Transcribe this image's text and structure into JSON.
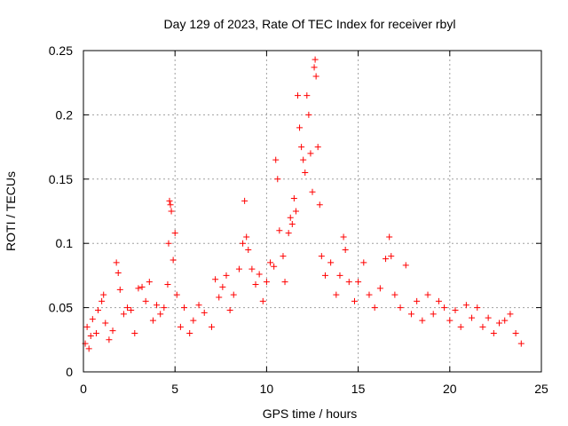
{
  "chart_data": {
    "type": "scatter",
    "title": "Day 129 of 2023, Rate Of TEC Index for receiver rbyl",
    "xlabel": "GPS time / hours",
    "ylabel": "ROTI / TECUs",
    "xlim": [
      0,
      25
    ],
    "ylim": [
      0,
      0.25
    ],
    "x_ticks": [
      "0",
      "5",
      "10",
      "15",
      "20",
      "25"
    ],
    "y_ticks": [
      "0",
      "0.05",
      "0.1",
      "0.15",
      "0.2",
      "0.25"
    ],
    "grid": true,
    "marker": "+",
    "color": "#ff0000",
    "series": [
      {
        "points": [
          [
            0.1,
            0.022
          ],
          [
            0.2,
            0.035
          ],
          [
            0.3,
            0.018
          ],
          [
            0.4,
            0.028
          ],
          [
            0.5,
            0.041
          ],
          [
            0.7,
            0.03
          ],
          [
            0.8,
            0.048
          ],
          [
            1.0,
            0.055
          ],
          [
            1.1,
            0.06
          ],
          [
            1.2,
            0.038
          ],
          [
            1.4,
            0.025
          ],
          [
            1.6,
            0.032
          ],
          [
            1.8,
            0.085
          ],
          [
            1.9,
            0.077
          ],
          [
            2.0,
            0.064
          ],
          [
            2.2,
            0.045
          ],
          [
            2.4,
            0.05
          ],
          [
            2.6,
            0.048
          ],
          [
            2.8,
            0.03
          ],
          [
            3.0,
            0.065
          ],
          [
            3.2,
            0.066
          ],
          [
            3.4,
            0.055
          ],
          [
            3.6,
            0.07
          ],
          [
            3.8,
            0.04
          ],
          [
            4.0,
            0.052
          ],
          [
            4.2,
            0.045
          ],
          [
            4.4,
            0.05
          ],
          [
            4.6,
            0.068
          ],
          [
            4.65,
            0.1
          ],
          [
            4.7,
            0.133
          ],
          [
            4.75,
            0.13
          ],
          [
            4.8,
            0.125
          ],
          [
            4.9,
            0.087
          ],
          [
            5.0,
            0.108
          ],
          [
            5.1,
            0.06
          ],
          [
            5.3,
            0.035
          ],
          [
            5.5,
            0.05
          ],
          [
            5.8,
            0.03
          ],
          [
            6.0,
            0.04
          ],
          [
            6.3,
            0.052
          ],
          [
            6.6,
            0.046
          ],
          [
            7.0,
            0.035
          ],
          [
            7.2,
            0.072
          ],
          [
            7.4,
            0.058
          ],
          [
            7.6,
            0.066
          ],
          [
            7.8,
            0.075
          ],
          [
            8.0,
            0.048
          ],
          [
            8.2,
            0.06
          ],
          [
            8.5,
            0.08
          ],
          [
            8.7,
            0.1
          ],
          [
            8.8,
            0.133
          ],
          [
            8.9,
            0.105
          ],
          [
            9.0,
            0.095
          ],
          [
            9.2,
            0.08
          ],
          [
            9.4,
            0.068
          ],
          [
            9.6,
            0.076
          ],
          [
            9.8,
            0.055
          ],
          [
            10.0,
            0.07
          ],
          [
            10.2,
            0.085
          ],
          [
            10.4,
            0.082
          ],
          [
            10.5,
            0.165
          ],
          [
            10.6,
            0.15
          ],
          [
            10.7,
            0.11
          ],
          [
            10.9,
            0.09
          ],
          [
            11.0,
            0.07
          ],
          [
            11.2,
            0.108
          ],
          [
            11.3,
            0.12
          ],
          [
            11.4,
            0.115
          ],
          [
            11.5,
            0.135
          ],
          [
            11.6,
            0.125
          ],
          [
            11.7,
            0.215
          ],
          [
            11.8,
            0.19
          ],
          [
            11.9,
            0.175
          ],
          [
            12.0,
            0.165
          ],
          [
            12.1,
            0.155
          ],
          [
            12.2,
            0.215
          ],
          [
            12.3,
            0.2
          ],
          [
            12.4,
            0.17
          ],
          [
            12.5,
            0.14
          ],
          [
            12.6,
            0.237
          ],
          [
            12.65,
            0.243
          ],
          [
            12.7,
            0.23
          ],
          [
            12.8,
            0.175
          ],
          [
            12.9,
            0.13
          ],
          [
            13.0,
            0.09
          ],
          [
            13.2,
            0.075
          ],
          [
            13.5,
            0.085
          ],
          [
            13.8,
            0.06
          ],
          [
            14.0,
            0.075
          ],
          [
            14.2,
            0.105
          ],
          [
            14.3,
            0.095
          ],
          [
            14.5,
            0.07
          ],
          [
            14.8,
            0.055
          ],
          [
            15.0,
            0.07
          ],
          [
            15.3,
            0.085
          ],
          [
            15.6,
            0.06
          ],
          [
            15.9,
            0.05
          ],
          [
            16.2,
            0.065
          ],
          [
            16.5,
            0.088
          ],
          [
            16.7,
            0.105
          ],
          [
            16.8,
            0.09
          ],
          [
            17.0,
            0.06
          ],
          [
            17.3,
            0.05
          ],
          [
            17.6,
            0.083
          ],
          [
            17.9,
            0.045
          ],
          [
            18.2,
            0.055
          ],
          [
            18.5,
            0.04
          ],
          [
            18.8,
            0.06
          ],
          [
            19.1,
            0.045
          ],
          [
            19.4,
            0.055
          ],
          [
            19.7,
            0.05
          ],
          [
            20.0,
            0.04
          ],
          [
            20.3,
            0.048
          ],
          [
            20.6,
            0.035
          ],
          [
            20.9,
            0.052
          ],
          [
            21.2,
            0.042
          ],
          [
            21.5,
            0.05
          ],
          [
            21.8,
            0.035
          ],
          [
            22.1,
            0.042
          ],
          [
            22.4,
            0.03
          ],
          [
            22.7,
            0.038
          ],
          [
            23.0,
            0.04
          ],
          [
            23.3,
            0.045
          ],
          [
            23.6,
            0.03
          ],
          [
            23.9,
            0.022
          ]
        ]
      }
    ]
  }
}
